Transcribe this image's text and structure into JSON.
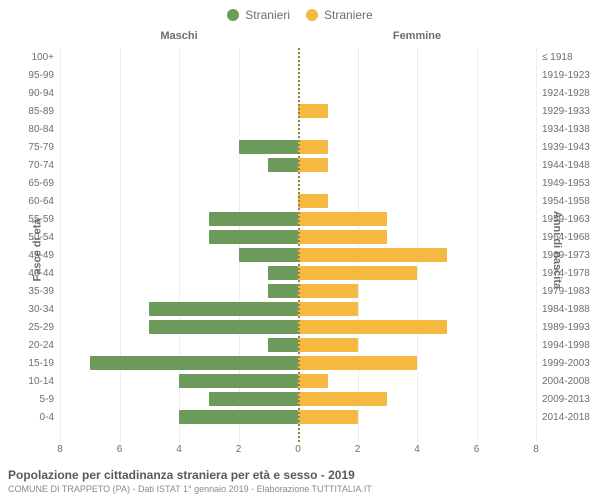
{
  "chart": {
    "type": "population-pyramid",
    "legend": {
      "male": {
        "label": "Stranieri",
        "color": "#6b9a5b"
      },
      "female": {
        "label": "Straniere",
        "color": "#f5b942"
      }
    },
    "column_headers": {
      "male": "Maschi",
      "female": "Femmine"
    },
    "yaxis_left_title": "Fasce di età",
    "yaxis_right_title": "Anni di nascita",
    "xaxis": {
      "max": 8,
      "ticks": [
        8,
        6,
        4,
        2,
        0,
        2,
        4,
        6,
        8
      ]
    },
    "background_color": "#ffffff",
    "grid_color": "#eeeeee",
    "center_line_color": "#8a8a3a",
    "label_color": "#6e6e6e",
    "label_fontsize": 10,
    "bar_padding": 2,
    "rows": [
      {
        "age": "100+",
        "birth": "≤ 1918",
        "m": 0,
        "f": 0
      },
      {
        "age": "95-99",
        "birth": "1919-1923",
        "m": 0,
        "f": 0
      },
      {
        "age": "90-94",
        "birth": "1924-1928",
        "m": 0,
        "f": 0
      },
      {
        "age": "85-89",
        "birth": "1929-1933",
        "m": 0,
        "f": 1
      },
      {
        "age": "80-84",
        "birth": "1934-1938",
        "m": 0,
        "f": 0
      },
      {
        "age": "75-79",
        "birth": "1939-1943",
        "m": 2,
        "f": 1
      },
      {
        "age": "70-74",
        "birth": "1944-1948",
        "m": 1,
        "f": 1
      },
      {
        "age": "65-69",
        "birth": "1949-1953",
        "m": 0,
        "f": 0
      },
      {
        "age": "60-64",
        "birth": "1954-1958",
        "m": 0,
        "f": 1
      },
      {
        "age": "55-59",
        "birth": "1959-1963",
        "m": 3,
        "f": 3
      },
      {
        "age": "50-54",
        "birth": "1964-1968",
        "m": 3,
        "f": 3
      },
      {
        "age": "45-49",
        "birth": "1969-1973",
        "m": 2,
        "f": 5
      },
      {
        "age": "40-44",
        "birth": "1974-1978",
        "m": 1,
        "f": 4
      },
      {
        "age": "35-39",
        "birth": "1979-1983",
        "m": 1,
        "f": 2
      },
      {
        "age": "30-34",
        "birth": "1984-1988",
        "m": 5,
        "f": 2
      },
      {
        "age": "25-29",
        "birth": "1989-1993",
        "m": 5,
        "f": 5
      },
      {
        "age": "20-24",
        "birth": "1994-1998",
        "m": 1,
        "f": 2
      },
      {
        "age": "15-19",
        "birth": "1999-2003",
        "m": 7,
        "f": 4
      },
      {
        "age": "10-14",
        "birth": "2004-2008",
        "m": 4,
        "f": 1
      },
      {
        "age": "5-9",
        "birth": "2009-2013",
        "m": 3,
        "f": 3
      },
      {
        "age": "0-4",
        "birth": "2014-2018",
        "m": 4,
        "f": 2
      }
    ]
  },
  "footer": {
    "title": "Popolazione per cittadinanza straniera per età e sesso - 2019",
    "subtitle": "COMUNE DI TRAPPETO (PA) - Dati ISTAT 1° gennaio 2019 - Elaborazione TUTTITALIA.IT"
  }
}
